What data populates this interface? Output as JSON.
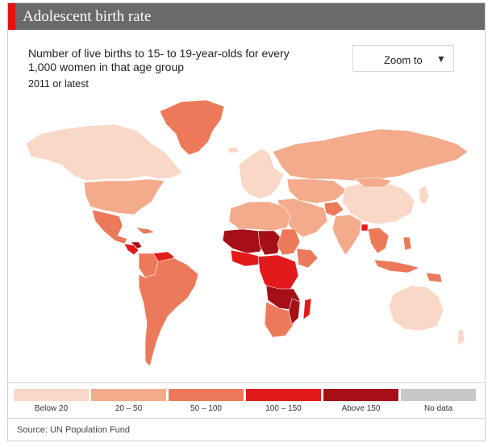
{
  "header": {
    "title": "Adolescent birth rate"
  },
  "subtitle": "Number of live births to 15- to 19-year-olds for every 1,000 women in that age group",
  "period": "2011 or latest",
  "zoom": {
    "label": "Zoom to",
    "icon": "chevron-down-icon"
  },
  "legend": [
    {
      "label": "Below 20",
      "color": "#f9d8c7"
    },
    {
      "label": "20 – 50",
      "color": "#f4ab8c"
    },
    {
      "label": "50 – 100",
      "color": "#ec7a5a"
    },
    {
      "label": "100 – 150",
      "color": "#e31a1c"
    },
    {
      "label": "Above 150",
      "color": "#a50f15"
    },
    {
      "label": "No data",
      "color": "#c8c8c8"
    }
  ],
  "source": "Source: UN Population Fund"
}
